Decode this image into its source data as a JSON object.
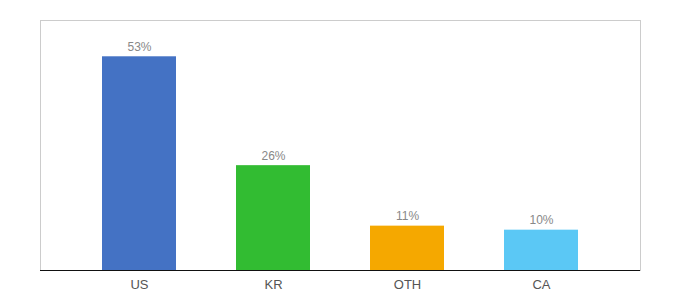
{
  "chart_data": {
    "type": "bar",
    "categories": [
      "US",
      "KR",
      "OTH",
      "CA"
    ],
    "values": [
      53,
      26,
      11,
      10
    ],
    "value_labels": [
      "53%",
      "26%",
      "11%",
      "10%"
    ],
    "data_labels": true,
    "colors": [
      "#4472c4",
      "#32bc32",
      "#f5a800",
      "#5bc8f5"
    ],
    "ylim": [
      0,
      62
    ],
    "tick_labels": "x",
    "grid": false
  }
}
